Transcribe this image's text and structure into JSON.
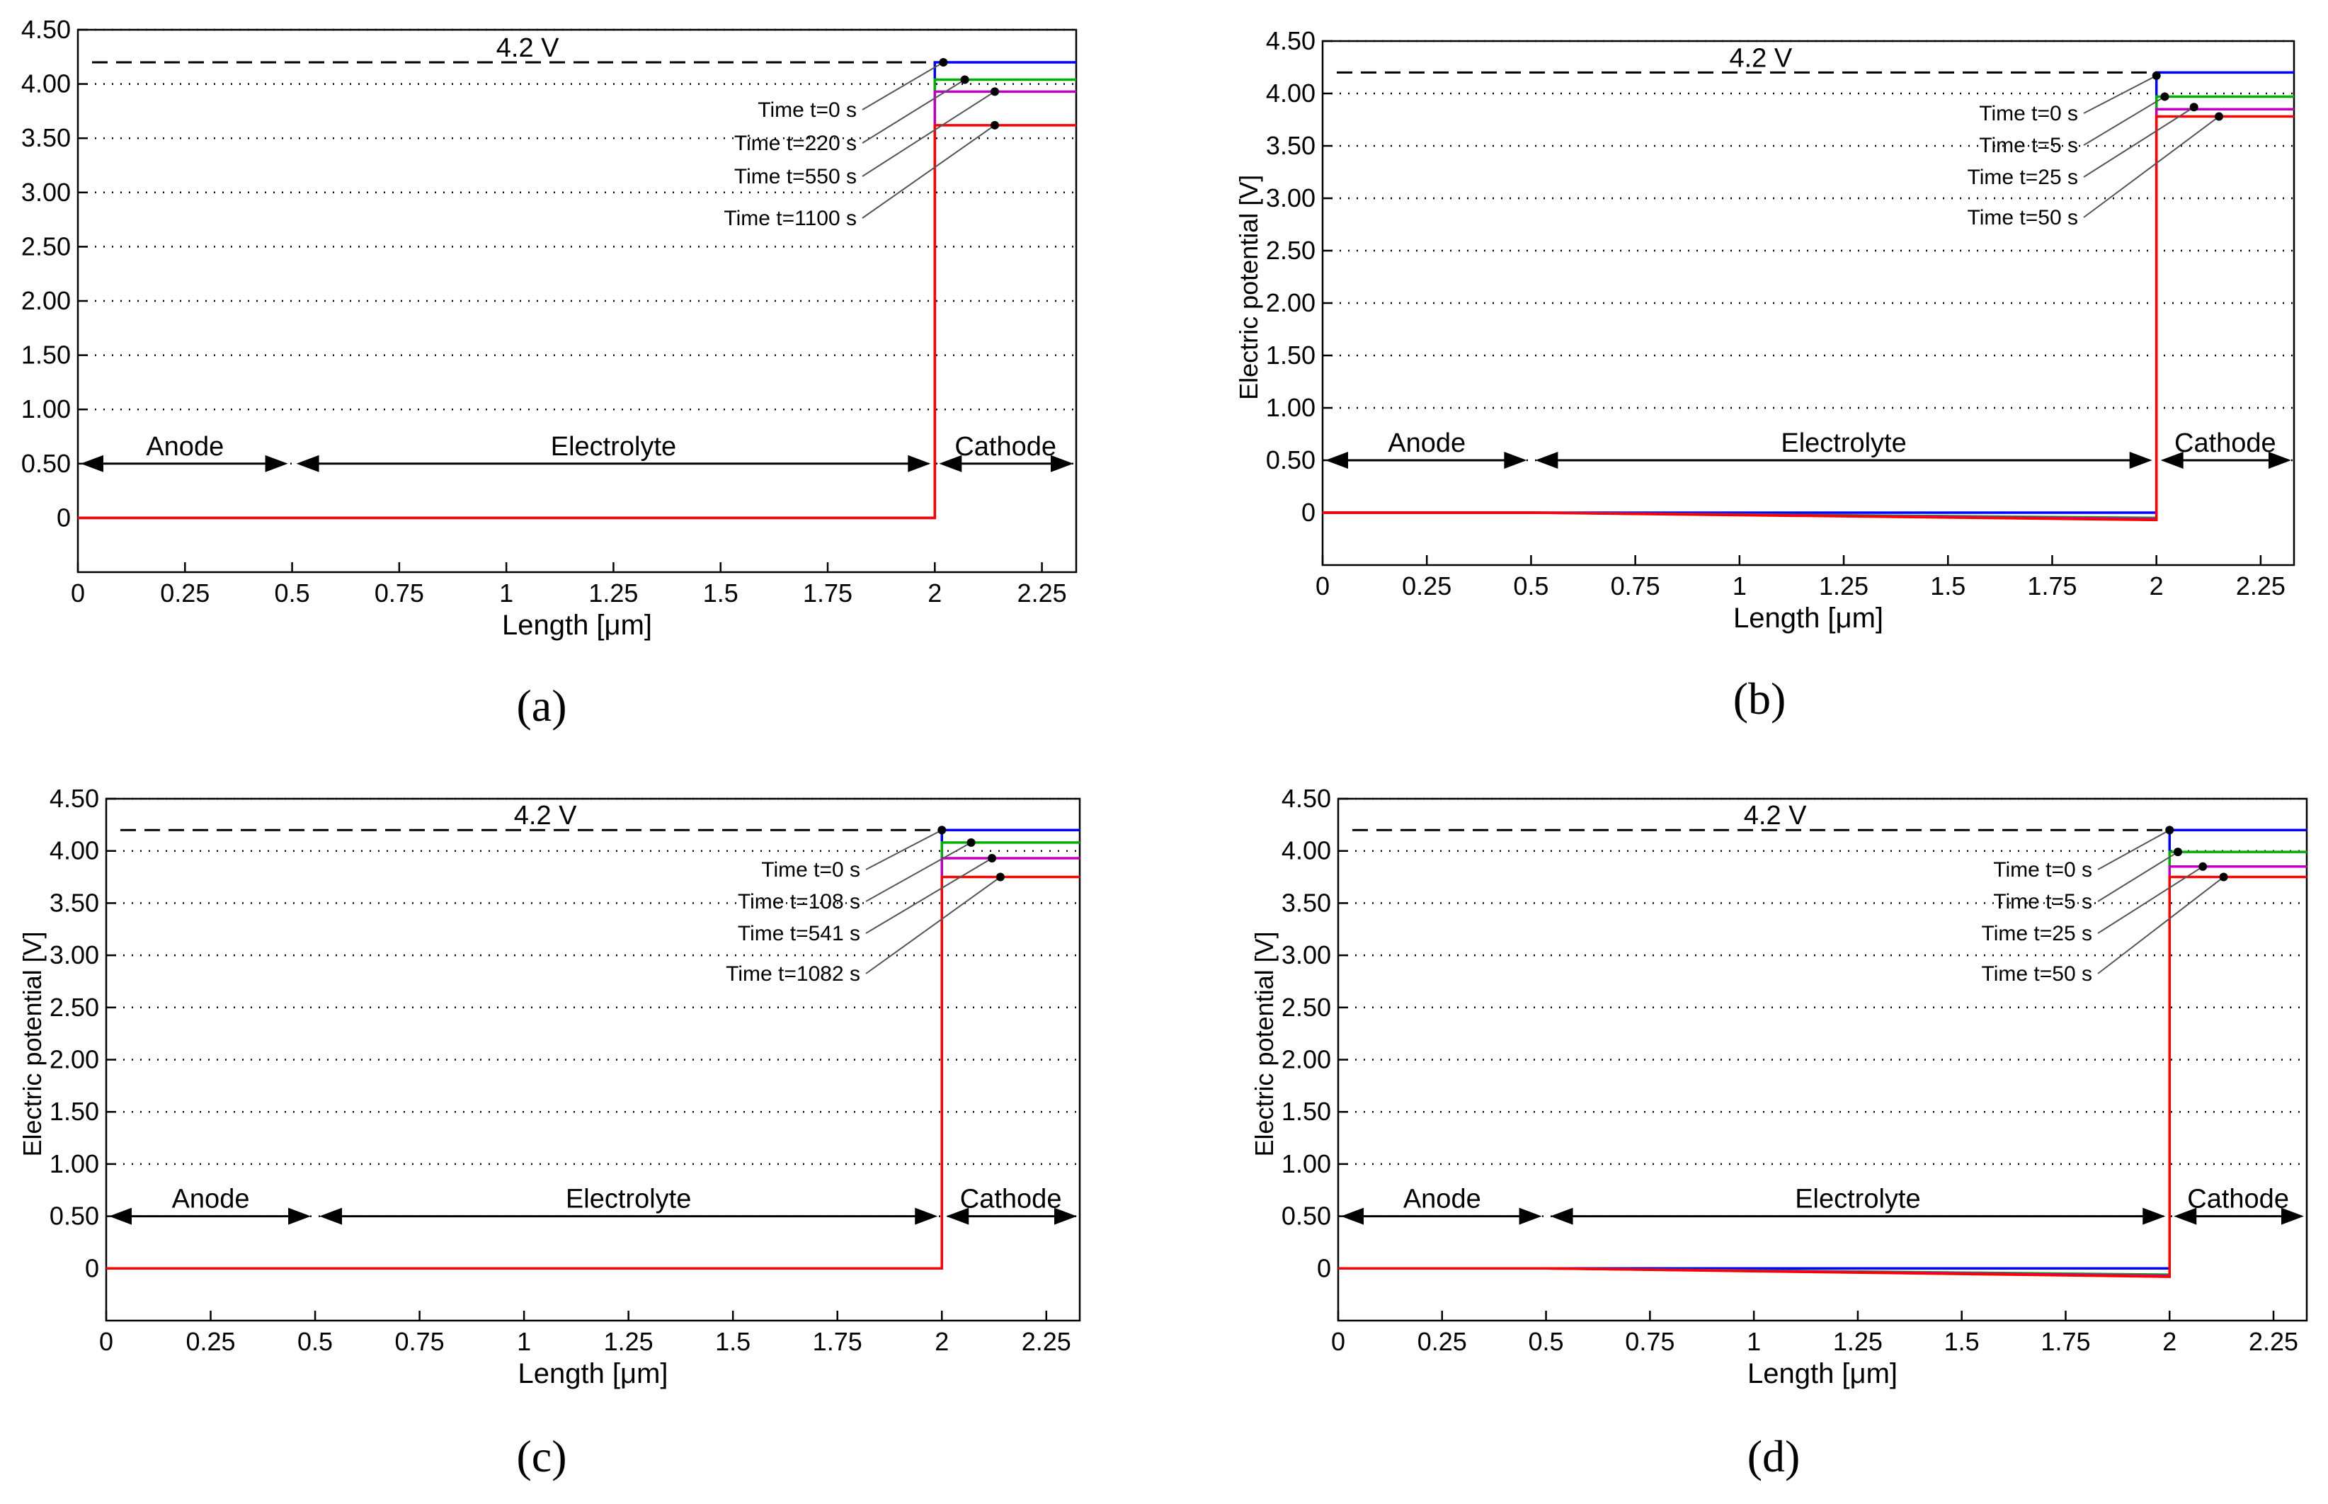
{
  "figure": {
    "labels": [
      "(a)",
      "(b)",
      "(c)",
      "(d)"
    ]
  },
  "chart_data": [
    {
      "type": "line",
      "panel": "a",
      "xlabel": "Length [μm]",
      "ylabel": "",
      "xlim": [
        0,
        2.33
      ],
      "ylim": [
        -0.5,
        4.5
      ],
      "xticks": [
        "0",
        "0.25",
        "0.5",
        "0.75",
        "1",
        "1.25",
        "1.5",
        "1.75",
        "2",
        "2.25"
      ],
      "yticks": [
        "0",
        "0.50",
        "1.00",
        "1.50",
        "2.00",
        "2.50",
        "3.00",
        "3.50",
        "4.00",
        "4.50"
      ],
      "grid": "dotted horizontal",
      "reference": {
        "value": 4.2,
        "label": "4.2 V"
      },
      "regions": [
        {
          "name": "Anode",
          "from": 0,
          "to": 0.5
        },
        {
          "name": "Electrolyte",
          "from": 0.5,
          "to": 2.0
        },
        {
          "name": "Cathode",
          "from": 2.0,
          "to": 2.33
        }
      ],
      "series": [
        {
          "name": "Time t=0 s",
          "color": "#0000ff",
          "points": [
            [
              0,
              0
            ],
            [
              2.0,
              0
            ],
            [
              2.0,
              4.2
            ],
            [
              2.33,
              4.2
            ]
          ],
          "marker": [
            2.02,
            4.2
          ]
        },
        {
          "name": "Time t=220 s",
          "color": "#00b000",
          "points": [
            [
              0,
              0
            ],
            [
              2.0,
              0
            ],
            [
              2.0,
              4.04
            ],
            [
              2.33,
              4.04
            ]
          ],
          "marker": [
            2.07,
            4.04
          ]
        },
        {
          "name": "Time t=550 s",
          "color": "#c000c0",
          "points": [
            [
              0,
              0
            ],
            [
              2.0,
              0
            ],
            [
              2.0,
              3.93
            ],
            [
              2.33,
              3.93
            ]
          ],
          "marker": [
            2.14,
            3.93
          ]
        },
        {
          "name": "Time t=1100 s",
          "color": "#ff0000",
          "points": [
            [
              0,
              0
            ],
            [
              2.0,
              0
            ],
            [
              2.0,
              3.62
            ],
            [
              2.33,
              3.62
            ]
          ],
          "marker": [
            2.14,
            3.62
          ]
        }
      ]
    },
    {
      "type": "line",
      "panel": "b",
      "xlabel": "Length [μm]",
      "ylabel": "Electric potential [V]",
      "xlim": [
        0,
        2.33
      ],
      "ylim": [
        -0.5,
        4.5
      ],
      "xticks": [
        "0",
        "0.25",
        "0.5",
        "0.75",
        "1",
        "1.25",
        "1.5",
        "1.75",
        "2",
        "2.25"
      ],
      "yticks": [
        "0",
        "0.50",
        "1.00",
        "1.50",
        "2.00",
        "2.50",
        "3.00",
        "3.50",
        "4.00",
        "4.50"
      ],
      "grid": "dotted horizontal",
      "reference": {
        "value": 4.2,
        "label": "4.2 V"
      },
      "regions": [
        {
          "name": "Anode",
          "from": 0,
          "to": 0.5
        },
        {
          "name": "Electrolyte",
          "from": 0.5,
          "to": 2.0
        },
        {
          "name": "Cathode",
          "from": 2.0,
          "to": 2.33
        }
      ],
      "series": [
        {
          "name": "Time t=0 s",
          "color": "#0000ff",
          "points": [
            [
              0,
              0
            ],
            [
              2.0,
              0
            ],
            [
              2.0,
              4.2
            ],
            [
              2.33,
              4.2
            ]
          ],
          "marker": [
            2.0,
            4.17
          ]
        },
        {
          "name": "Time t=5 s",
          "color": "#00b000",
          "points": [
            [
              0,
              0
            ],
            [
              0.5,
              0
            ],
            [
              2.0,
              -0.05
            ],
            [
              2.0,
              3.97
            ],
            [
              2.33,
              3.97
            ]
          ],
          "marker": [
            2.02,
            3.97
          ]
        },
        {
          "name": "Time t=25 s",
          "color": "#c000c0",
          "points": [
            [
              0,
              0
            ],
            [
              0.5,
              0
            ],
            [
              2.0,
              -0.06
            ],
            [
              2.0,
              3.85
            ],
            [
              2.33,
              3.85
            ]
          ],
          "marker": [
            2.09,
            3.87
          ]
        },
        {
          "name": "Time t=50 s",
          "color": "#ff0000",
          "points": [
            [
              0,
              0
            ],
            [
              0.5,
              0
            ],
            [
              2.0,
              -0.07
            ],
            [
              2.0,
              3.78
            ],
            [
              2.33,
              3.78
            ]
          ],
          "marker": [
            2.15,
            3.78
          ]
        }
      ]
    },
    {
      "type": "line",
      "panel": "c",
      "xlabel": "Length [μm]",
      "ylabel": "Electric potential [V]",
      "xlim": [
        0,
        2.33
      ],
      "ylim": [
        -0.5,
        4.5
      ],
      "xticks": [
        "0",
        "0.25",
        "0.5",
        "0.75",
        "1",
        "1.25",
        "1.5",
        "1.75",
        "2",
        "2.25"
      ],
      "yticks": [
        "0",
        "0.50",
        "1.00",
        "1.50",
        "2.00",
        "2.50",
        "3.00",
        "3.50",
        "4.00",
        "4.50"
      ],
      "grid": "dotted horizontal",
      "reference": {
        "value": 4.2,
        "label": "4.2 V"
      },
      "regions": [
        {
          "name": "Anode",
          "from": 0,
          "to": 0.5
        },
        {
          "name": "Electrolyte",
          "from": 0.5,
          "to": 2.0
        },
        {
          "name": "Cathode",
          "from": 2.0,
          "to": 2.33
        }
      ],
      "series": [
        {
          "name": "Time t=0 s",
          "color": "#0000ff",
          "points": [
            [
              0,
              0
            ],
            [
              2.0,
              0
            ],
            [
              2.0,
              4.2
            ],
            [
              2.33,
              4.2
            ]
          ],
          "marker": [
            2.0,
            4.2
          ]
        },
        {
          "name": "Time t=108 s",
          "color": "#00b000",
          "points": [
            [
              0,
              0
            ],
            [
              2.0,
              0
            ],
            [
              2.0,
              4.08
            ],
            [
              2.33,
              4.08
            ]
          ],
          "marker": [
            2.07,
            4.08
          ]
        },
        {
          "name": "Time t=541 s",
          "color": "#c000c0",
          "points": [
            [
              0,
              0
            ],
            [
              2.0,
              0
            ],
            [
              2.0,
              3.93
            ],
            [
              2.33,
              3.93
            ]
          ],
          "marker": [
            2.12,
            3.93
          ]
        },
        {
          "name": "Time t=1082 s",
          "color": "#ff0000",
          "points": [
            [
              0,
              0
            ],
            [
              2.0,
              0
            ],
            [
              2.0,
              3.75
            ],
            [
              2.33,
              3.75
            ]
          ],
          "marker": [
            2.14,
            3.75
          ]
        }
      ]
    },
    {
      "type": "line",
      "panel": "d",
      "xlabel": "Length [μm]",
      "ylabel": "Electric potential [V]",
      "xlim": [
        0,
        2.33
      ],
      "ylim": [
        -0.5,
        4.5
      ],
      "xticks": [
        "0",
        "0.25",
        "0.5",
        "0.75",
        "1",
        "1.25",
        "1.5",
        "1.75",
        "2",
        "2.25"
      ],
      "yticks": [
        "0",
        "0.50",
        "1.00",
        "1.50",
        "2.00",
        "2.50",
        "3.00",
        "3.50",
        "4.00",
        "4.50"
      ],
      "grid": "dotted horizontal",
      "reference": {
        "value": 4.2,
        "label": "4.2 V"
      },
      "regions": [
        {
          "name": "Anode",
          "from": 0,
          "to": 0.5
        },
        {
          "name": "Electrolyte",
          "from": 0.5,
          "to": 2.0
        },
        {
          "name": "Cathode",
          "from": 2.0,
          "to": 2.33
        }
      ],
      "series": [
        {
          "name": "Time t=0 s",
          "color": "#0000ff",
          "points": [
            [
              0,
              0
            ],
            [
              2.0,
              0
            ],
            [
              2.0,
              4.2
            ],
            [
              2.33,
              4.2
            ]
          ],
          "marker": [
            2.0,
            4.2
          ]
        },
        {
          "name": "Time t=5 s",
          "color": "#00b000",
          "points": [
            [
              0,
              0
            ],
            [
              0.5,
              0
            ],
            [
              2.0,
              -0.06
            ],
            [
              2.0,
              3.99
            ],
            [
              2.33,
              3.99
            ]
          ],
          "marker": [
            2.02,
            3.99
          ]
        },
        {
          "name": "Time t=25 s",
          "color": "#c000c0",
          "points": [
            [
              0,
              0
            ],
            [
              0.5,
              0
            ],
            [
              2.0,
              -0.07
            ],
            [
              2.0,
              3.85
            ],
            [
              2.33,
              3.85
            ]
          ],
          "marker": [
            2.08,
            3.85
          ]
        },
        {
          "name": "Time t=50 s",
          "color": "#ff0000",
          "points": [
            [
              0,
              0
            ],
            [
              0.5,
              0
            ],
            [
              2.0,
              -0.08
            ],
            [
              2.0,
              3.75
            ],
            [
              2.33,
              3.75
            ]
          ],
          "marker": [
            2.13,
            3.75
          ]
        }
      ]
    }
  ]
}
